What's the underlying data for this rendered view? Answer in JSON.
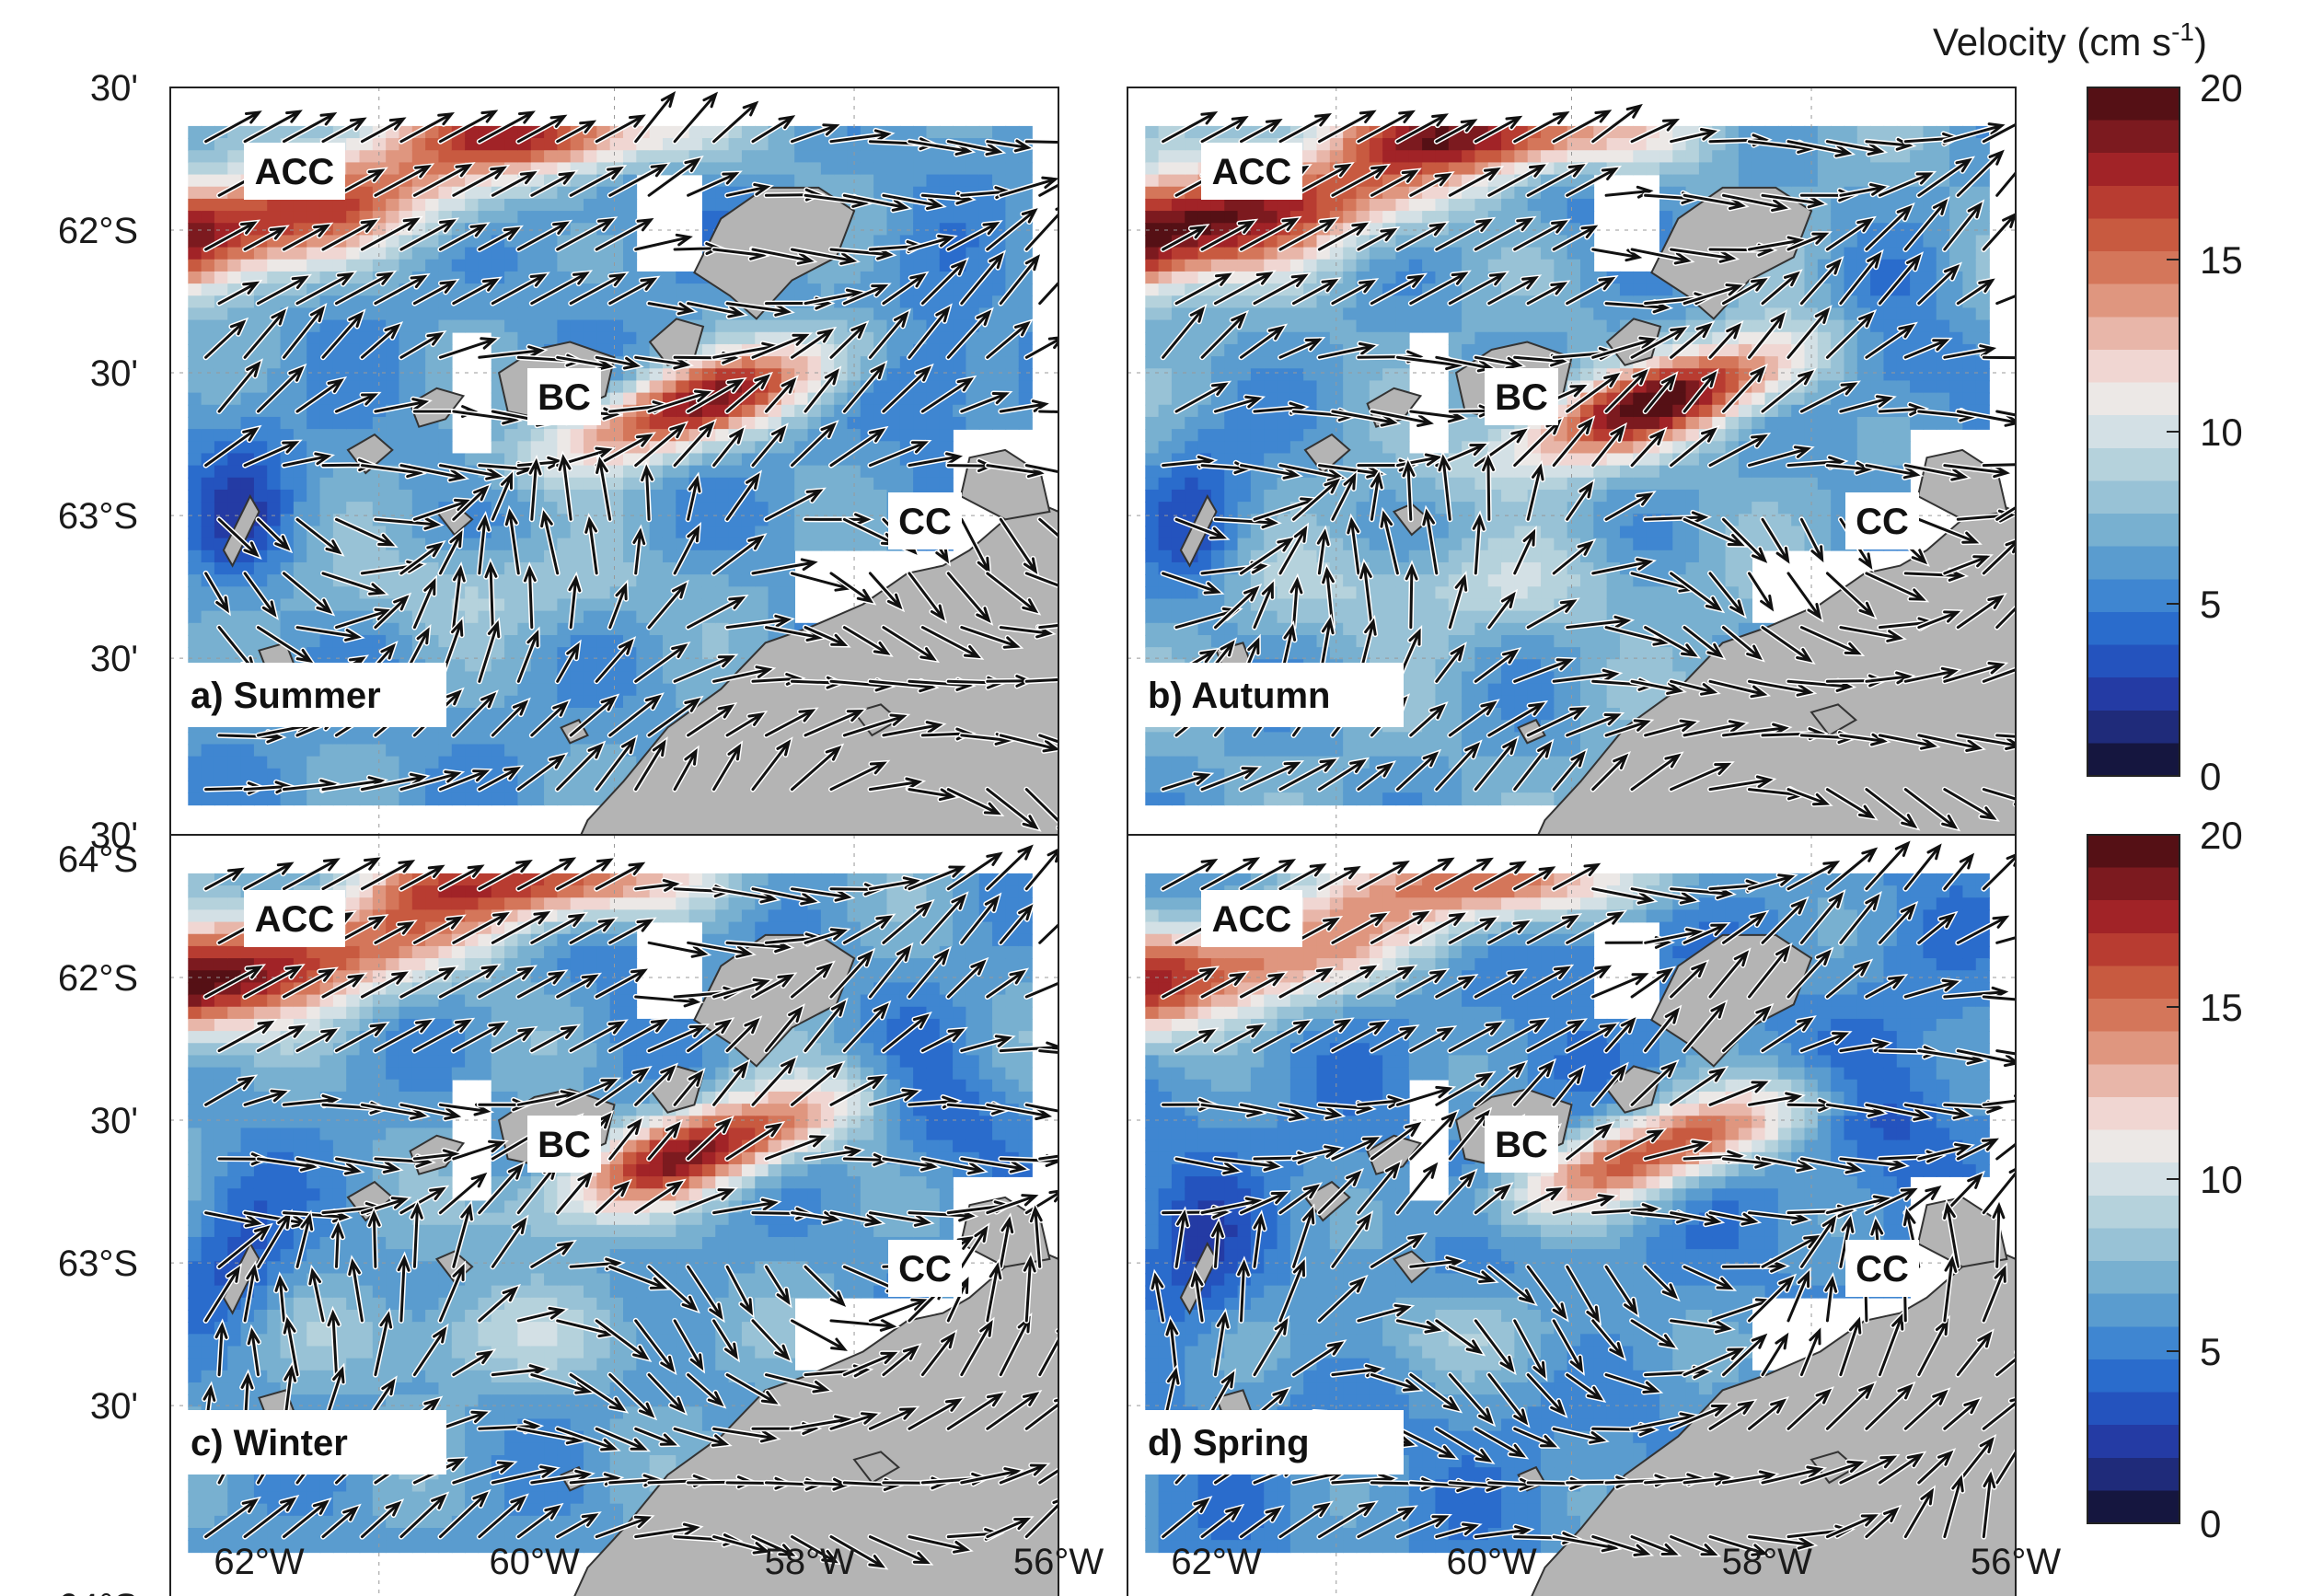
{
  "colorbar": {
    "title_main": "Velocity (cm s",
    "title_exp": "-1",
    "title_close": ")",
    "ticks": [
      0,
      5,
      10,
      15,
      20
    ],
    "range": [
      0,
      20
    ],
    "colors": [
      "#15163f",
      "#1f2b7a",
      "#243ba4",
      "#2453be",
      "#2a6ccc",
      "#3f86d1",
      "#5a9ccf",
      "#78b0d0",
      "#98c2d6",
      "#b5d2dc",
      "#d3e0e5",
      "#ece8e6",
      "#f0d6d2",
      "#e8b6a9",
      "#df967f",
      "#d4765a",
      "#c85a40",
      "#b83c31",
      "#a12327",
      "#7c1a1f",
      "#551015"
    ]
  },
  "axes": {
    "lat_ticks": [
      "30'",
      "62°S",
      "30'",
      "63°S",
      "30'",
      "64°S"
    ],
    "lon_ticks": [
      "62°W",
      "60°W",
      "58°W",
      "56°W"
    ]
  },
  "current_labels": [
    "ACC",
    "BC",
    "CC"
  ],
  "panels": [
    {
      "label": "a) Summer",
      "season": "summer",
      "intensity": 1.0
    },
    {
      "label": "b) Autumn",
      "season": "autumn",
      "intensity": 1.08
    },
    {
      "label": "c) Winter",
      "season": "winter",
      "intensity": 1.02
    },
    {
      "label": "d) Spring",
      "season": "spring",
      "intensity": 0.9
    }
  ],
  "colors": {
    "land": "#b4b4b4",
    "coast": "#333333",
    "arrow": "#111111"
  }
}
